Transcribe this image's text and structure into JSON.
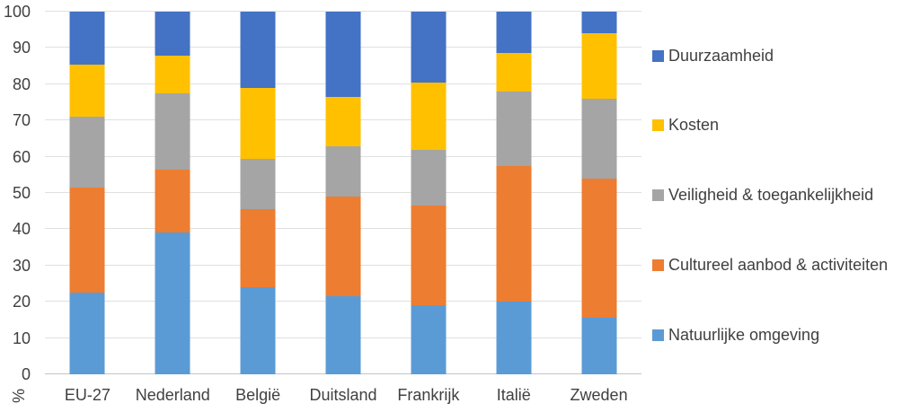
{
  "chart_data": {
    "type": "bar",
    "subtype": "stacked-100-percent",
    "title": "",
    "xlabel": "",
    "ylabel": "%",
    "ylim": [
      0,
      100
    ],
    "yticks": [
      0,
      10,
      20,
      30,
      40,
      50,
      60,
      70,
      80,
      90,
      100
    ],
    "grid": true,
    "legend_position": "right",
    "legend_order_top_to_bottom": [
      "Duurzaamheid",
      "Kosten",
      "Veiligheid & toegankelijkheid",
      "Cultureel aanbod & activiteiten",
      "Natuurlijke omgeving"
    ],
    "categories": [
      "EU-27",
      "Nederland",
      "België",
      "Duitsland",
      "Frankrijk",
      "Italië",
      "Zweden"
    ],
    "series": [
      {
        "name": "Natuurlijke omgeving",
        "color": "#5B9BD5",
        "values": [
          22.5,
          39.0,
          24.0,
          21.5,
          19.0,
          20.0,
          15.5
        ]
      },
      {
        "name": "Cultureel aanbod & activiteiten",
        "color": "#ED7D31",
        "values": [
          29.0,
          17.5,
          21.5,
          27.5,
          27.5,
          37.5,
          38.5
        ]
      },
      {
        "name": "Veiligheid & toegankelijkheid",
        "color": "#A5A5A5",
        "values": [
          19.5,
          21.0,
          14.0,
          14.0,
          15.5,
          20.5,
          22.0
        ]
      },
      {
        "name": "Kosten",
        "color": "#FFC000",
        "values": [
          14.5,
          10.5,
          19.5,
          13.5,
          18.5,
          10.5,
          18.0
        ]
      },
      {
        "name": "Duurzaamheid",
        "color": "#4472C4",
        "values": [
          14.5,
          12.0,
          21.0,
          23.5,
          19.5,
          11.5,
          6.0
        ]
      }
    ]
  },
  "colors": {
    "background": "#FFFFFF",
    "axis_text": "#404040",
    "gridline": "#E0E0E0",
    "zero_line": "#C4C4C4"
  }
}
